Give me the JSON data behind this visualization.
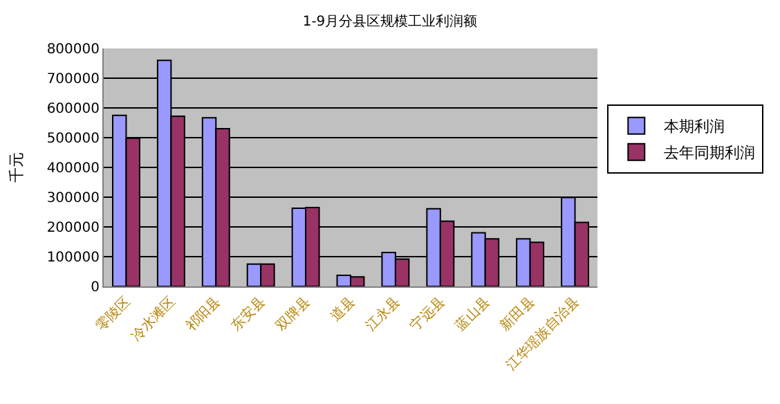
{
  "chart_data": {
    "type": "bar",
    "title": "1-9月分县区规模工业利润额",
    "ylabel": "千元",
    "categories": [
      "零陵区",
      "冷水滩区",
      "祁阳县",
      "东安县",
      "双牌县",
      "道县",
      "江永县",
      "宁远县",
      "蓝山县",
      "新田县",
      "江华瑶族自治县"
    ],
    "series": [
      {
        "name": "本期利润",
        "color": "#9999ff",
        "values": [
          575000,
          760000,
          567000,
          75000,
          263000,
          37000,
          114000,
          261000,
          180000,
          160000,
          299000
        ]
      },
      {
        "name": "去年同期利润",
        "color": "#993366",
        "values": [
          498000,
          572000,
          530000,
          75000,
          265000,
          32000,
          92000,
          219000,
          160000,
          148000,
          215000
        ]
      }
    ],
    "ylim": [
      0,
      800000
    ],
    "yticks": [
      0,
      100000,
      200000,
      300000,
      400000,
      500000,
      600000,
      700000,
      800000
    ],
    "grid": "y",
    "legend": "right"
  }
}
